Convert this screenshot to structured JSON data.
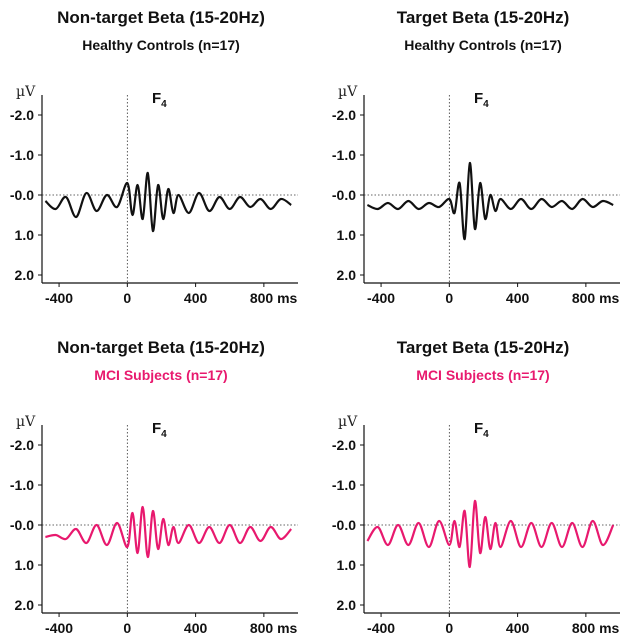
{
  "electrode": "F",
  "electrode_subscript": "4",
  "unit": "µV",
  "x_unit": "ms",
  "panels": [
    {
      "title": "Non-target Beta (15-20Hz)",
      "subtitle": "Healthy Controls (n=17)",
      "subtitle_color": "#111111"
    },
    {
      "title": "Target Beta (15-20Hz)",
      "subtitle": "Healthy Controls (n=17)",
      "subtitle_color": "#111111"
    },
    {
      "title": "Non-target Beta (15-20Hz)",
      "subtitle": "MCI Subjects (n=17)",
      "subtitle_color": "#e8196e"
    },
    {
      "title": "Target Beta (15-20Hz)",
      "subtitle": "MCI Subjects  (n=17)",
      "subtitle_color": "#e8196e"
    }
  ],
  "chart_data": [
    {
      "type": "line",
      "title": "Non-target Beta (15-20Hz)",
      "subtitle": "Healthy Controls (n=17)",
      "xlabel": "ms",
      "ylabel": "µV",
      "xlim": [
        -500,
        1000
      ],
      "ylim": [
        -2.5,
        2.2
      ],
      "y_inverted": true,
      "x_ticks": [
        -400,
        0,
        400,
        800
      ],
      "x_tick_labels": [
        "-400",
        "0",
        "400",
        "800 ms"
      ],
      "y_ticks": [
        -2.0,
        -1.0,
        0.0,
        1.0,
        2.0
      ],
      "y_tick_labels": [
        "-2.0",
        "-1.0",
        "-0.0",
        "1.0",
        "2.0"
      ],
      "stimulus_x": 0,
      "zero_line": 0.0,
      "series": [
        {
          "color": "#111111",
          "x": [
            -480,
            -420,
            -360,
            -300,
            -240,
            -180,
            -120,
            -60,
            0,
            30,
            60,
            90,
            120,
            150,
            180,
            210,
            240,
            270,
            300,
            360,
            420,
            480,
            540,
            600,
            660,
            720,
            780,
            840,
            900,
            960
          ],
          "y": [
            0.15,
            0.35,
            0.05,
            0.55,
            -0.05,
            0.4,
            0.0,
            0.3,
            -0.3,
            0.5,
            -0.25,
            0.6,
            -0.55,
            0.9,
            -0.25,
            0.6,
            -0.15,
            0.45,
            0.0,
            0.45,
            -0.05,
            0.4,
            0.05,
            0.35,
            0.05,
            0.3,
            0.1,
            0.35,
            0.1,
            0.25
          ]
        }
      ]
    },
    {
      "type": "line",
      "title": "Target Beta (15-20Hz)",
      "subtitle": "Healthy Controls (n=17)",
      "xlabel": "ms",
      "ylabel": "µV",
      "xlim": [
        -500,
        1000
      ],
      "ylim": [
        -2.5,
        2.2
      ],
      "y_inverted": true,
      "x_ticks": [
        -400,
        0,
        400,
        800
      ],
      "x_tick_labels": [
        "-400",
        "0",
        "400",
        "800 ms"
      ],
      "y_ticks": [
        -2.0,
        -1.0,
        0.0,
        1.0,
        2.0
      ],
      "y_tick_labels": [
        "-2.0",
        "-1.0",
        "-0.0",
        "1.0",
        "2.0"
      ],
      "stimulus_x": 0,
      "zero_line": 0.0,
      "series": [
        {
          "color": "#111111",
          "x": [
            -480,
            -420,
            -360,
            -300,
            -240,
            -180,
            -120,
            -60,
            0,
            30,
            60,
            90,
            120,
            150,
            180,
            210,
            240,
            270,
            300,
            360,
            420,
            480,
            540,
            600,
            660,
            720,
            780,
            840,
            900,
            960
          ],
          "y": [
            0.25,
            0.35,
            0.2,
            0.35,
            0.15,
            0.35,
            0.2,
            0.3,
            0.1,
            0.45,
            -0.3,
            1.1,
            -0.8,
            0.85,
            -0.3,
            0.6,
            0.0,
            0.4,
            0.1,
            0.35,
            0.1,
            0.35,
            0.1,
            0.3,
            0.15,
            0.35,
            0.1,
            0.3,
            0.15,
            0.25
          ]
        }
      ]
    },
    {
      "type": "line",
      "title": "Non-target Beta (15-20Hz)",
      "subtitle": "MCI Subjects (n=17)",
      "xlabel": "ms",
      "ylabel": "µV",
      "xlim": [
        -500,
        1000
      ],
      "ylim": [
        -2.5,
        2.2
      ],
      "y_inverted": true,
      "x_ticks": [
        -400,
        0,
        400,
        800
      ],
      "x_tick_labels": [
        "-400",
        "0",
        "400",
        "800 ms"
      ],
      "y_ticks": [
        -2.0,
        -1.0,
        0.0,
        1.0,
        2.0
      ],
      "y_tick_labels": [
        "-2.0",
        "-1.0",
        "-0.0",
        "1.0",
        "2.0"
      ],
      "stimulus_x": 0,
      "zero_line": 0.0,
      "series": [
        {
          "color": "#e8196e",
          "x": [
            -480,
            -420,
            -360,
            -300,
            -240,
            -180,
            -120,
            -60,
            0,
            30,
            60,
            90,
            120,
            150,
            180,
            210,
            240,
            270,
            300,
            360,
            420,
            480,
            540,
            600,
            660,
            720,
            780,
            840,
            900,
            960
          ],
          "y": [
            0.3,
            0.25,
            0.35,
            0.1,
            0.45,
            0.0,
            0.5,
            -0.05,
            0.55,
            -0.3,
            0.7,
            -0.45,
            0.8,
            -0.35,
            0.6,
            -0.15,
            0.5,
            0.05,
            0.45,
            0.0,
            0.45,
            0.05,
            0.45,
            0.0,
            0.45,
            0.05,
            0.4,
            0.05,
            0.35,
            0.1
          ]
        }
      ]
    },
    {
      "type": "line",
      "title": "Target Beta (15-20Hz)",
      "subtitle": "MCI Subjects  (n=17)",
      "xlabel": "ms",
      "ylabel": "µV",
      "xlim": [
        -500,
        1000
      ],
      "ylim": [
        -2.5,
        2.2
      ],
      "y_inverted": true,
      "x_ticks": [
        -400,
        0,
        400,
        800
      ],
      "x_tick_labels": [
        "-400",
        "0",
        "400",
        "800 ms"
      ],
      "y_ticks": [
        -2.0,
        -1.0,
        0.0,
        1.0,
        2.0
      ],
      "y_tick_labels": [
        "-2.0",
        "-1.0",
        "-0.0",
        "1.0",
        "2.0"
      ],
      "stimulus_x": 0,
      "zero_line": 0.0,
      "series": [
        {
          "color": "#e8196e",
          "x": [
            -480,
            -420,
            -360,
            -300,
            -240,
            -180,
            -120,
            -60,
            0,
            30,
            60,
            90,
            120,
            150,
            180,
            210,
            240,
            270,
            300,
            360,
            420,
            480,
            540,
            600,
            660,
            720,
            780,
            840,
            900,
            960
          ],
          "y": [
            0.4,
            0.05,
            0.5,
            0.0,
            0.5,
            -0.05,
            0.55,
            -0.1,
            0.5,
            -0.1,
            0.55,
            -0.35,
            1.05,
            -0.6,
            0.7,
            -0.2,
            0.6,
            -0.05,
            0.55,
            -0.1,
            0.55,
            -0.05,
            0.55,
            -0.05,
            0.55,
            -0.05,
            0.55,
            -0.1,
            0.5,
            0.0
          ]
        }
      ]
    }
  ]
}
